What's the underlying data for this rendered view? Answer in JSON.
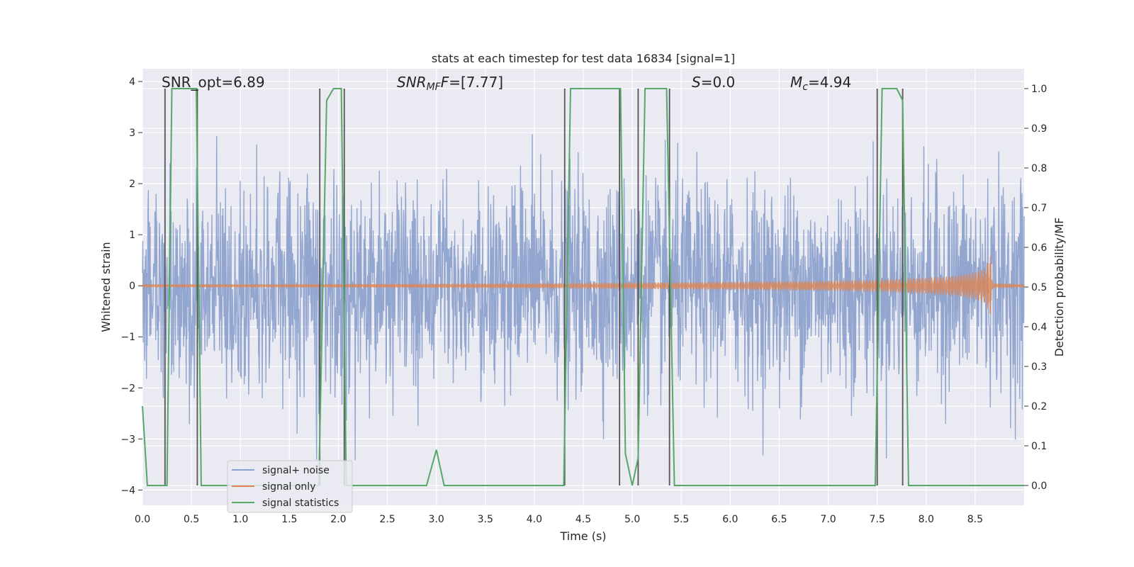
{
  "chart_data": {
    "type": "line",
    "title": "stats at each timestep for test data 16834 [signal=1]",
    "xlabel": "Time (s)",
    "ylabel": "Whitened strain",
    "ylabel_right": "Detection probability/MF",
    "xlim": [
      0,
      9
    ],
    "ylim": [
      -4.3,
      4.25
    ],
    "ylim_right": [
      -0.05,
      1.05
    ],
    "x_ticks": [
      "0.0",
      "0.5",
      "1.0",
      "1.5",
      "2.0",
      "2.5",
      "3.0",
      "3.5",
      "4.0",
      "4.5",
      "5.0",
      "5.5",
      "6.0",
      "6.5",
      "7.0",
      "7.5",
      "8.0",
      "8.5"
    ],
    "y_ticks": [
      "−4",
      "−3",
      "−2",
      "−1",
      "0",
      "1",
      "2",
      "3",
      "4"
    ],
    "y_ticks_right": [
      "0.0",
      "0.1",
      "0.2",
      "0.3",
      "0.4",
      "0.5",
      "0.6",
      "0.7",
      "0.8",
      "0.9",
      "1.0"
    ],
    "grid": true,
    "legend_placement": "lower-left",
    "annotations": {
      "snr_opt": "SNR_opt=6.89",
      "snr_mf_main": "SNR",
      "snr_mf_sub": "MF",
      "snr_mf_rest": "=[7.77]",
      "s_main": "S",
      "s_rest": "=0.0",
      "mc_main": "M",
      "mc_sub": "c",
      "mc_rest": "=4.94"
    },
    "series": [
      {
        "name": "signal+ noise",
        "color": "#8ea2cd",
        "axis": "left",
        "description_values": {
          "typical_band": [
            -1.6,
            1.6
          ],
          "max_spike": 3.55,
          "min_spike": -4.0
        }
      },
      {
        "name": "signal only",
        "color": "#dd8452",
        "axis": "left",
        "envelope": {
          "t": [
            0.0,
            1.0,
            2.0,
            3.0,
            4.0,
            5.0,
            6.0,
            7.0,
            7.5,
            8.0,
            8.3,
            8.5,
            8.6,
            8.66,
            8.68,
            9.0
          ],
          "amp": [
            0.03,
            0.03,
            0.035,
            0.04,
            0.05,
            0.065,
            0.08,
            0.1,
            0.12,
            0.16,
            0.2,
            0.27,
            0.35,
            0.6,
            0.05,
            0.03
          ]
        }
      },
      {
        "name": "signal statistics",
        "color": "#55a868",
        "axis": "right",
        "x": [
          0.0,
          0.05,
          0.25,
          0.3,
          0.55,
          0.6,
          1.8,
          1.88,
          1.95,
          2.03,
          2.08,
          2.15,
          2.9,
          3.0,
          3.08,
          4.3,
          4.37,
          4.88,
          4.93,
          5.0,
          5.06,
          5.13,
          5.35,
          5.43,
          5.5,
          5.6,
          7.48,
          7.55,
          7.7,
          7.76,
          7.82,
          9.0
        ],
        "y": [
          0.2,
          0.0,
          0.0,
          1.0,
          1.0,
          0.0,
          0.0,
          0.97,
          1.0,
          1.0,
          0.0,
          0.0,
          0.0,
          0.09,
          0.0,
          0.0,
          1.0,
          1.0,
          0.08,
          0.0,
          0.07,
          1.0,
          1.0,
          0.0,
          0.0,
          0.0,
          0.0,
          1.0,
          1.0,
          0.97,
          0.0,
          0.0
        ]
      }
    ],
    "vertical_lines": [
      0.23,
      0.56,
      1.81,
      2.06,
      4.31,
      4.87,
      5.06,
      5.38,
      7.5,
      7.76
    ],
    "vertical_line_color": "#555555"
  }
}
